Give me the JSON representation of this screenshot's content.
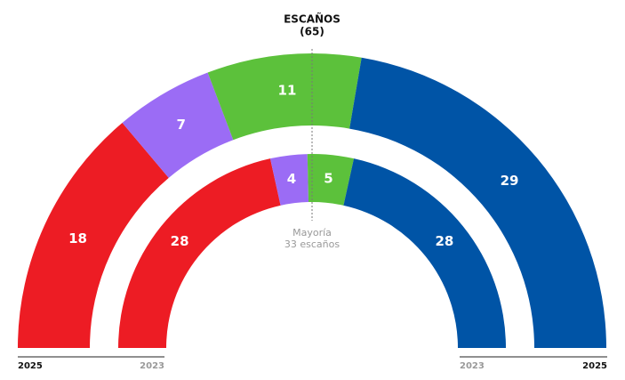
{
  "chart_data": {
    "type": "hemicycle",
    "title": "ESCAÑOS",
    "subtitle": "(65)",
    "annotation": [
      "Mayoría",
      "33 escaños"
    ],
    "colors": [
      "#ed1c24",
      "#9b6cf5",
      "#5cc13b",
      "#0054a6"
    ],
    "rings": [
      {
        "name": "2025",
        "values": [
          18,
          7,
          11,
          29
        ]
      },
      {
        "name": "2023",
        "values": [
          28,
          4,
          5,
          28
        ]
      }
    ]
  }
}
